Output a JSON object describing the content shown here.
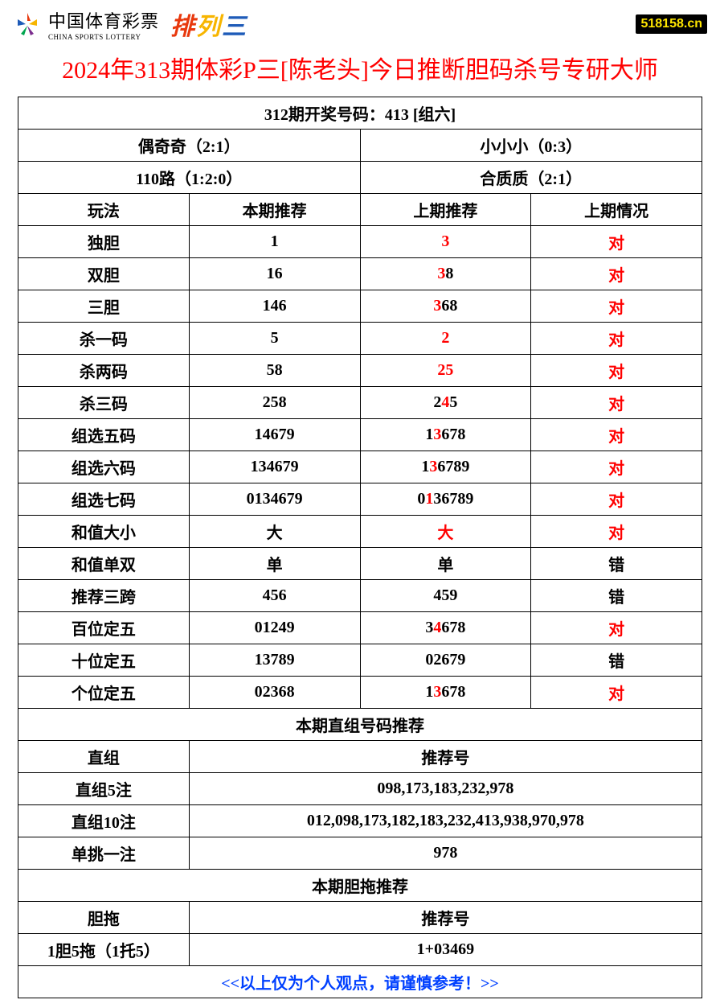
{
  "header": {
    "logo_cn": "中国体育彩票",
    "logo_en": "CHINA SPORTS LOTTERY",
    "pls_1": "排",
    "pls_2": "列",
    "pls_3": "三",
    "site_tag": "518158.cn"
  },
  "title": "2024年313期体彩P三[陈老头]今日推断胆码杀号专研大师",
  "summary": {
    "result_label": "312期开奖号码：413 [组六]",
    "row1_left": "偶奇奇（2:1）",
    "row1_right": "小小小（0:3）",
    "row2_left": "110路（1:2:0）",
    "row2_right": "合质质（2:1）"
  },
  "columns": {
    "c1": "玩法",
    "c2": "本期推荐",
    "c3": "上期推荐",
    "c4": "上期情况"
  },
  "rows": [
    {
      "name": "独胆",
      "cur": "1",
      "prev": [
        {
          "t": "3",
          "r": true
        }
      ],
      "status": "对",
      "status_r": true
    },
    {
      "name": "双胆",
      "cur": "16",
      "prev": [
        {
          "t": "3",
          "r": true
        },
        {
          "t": "8",
          "r": false
        }
      ],
      "status": "对",
      "status_r": true
    },
    {
      "name": "三胆",
      "cur": "146",
      "prev": [
        {
          "t": "3",
          "r": true
        },
        {
          "t": "68",
          "r": false
        }
      ],
      "status": "对",
      "status_r": true
    },
    {
      "name": "杀一码",
      "cur": "5",
      "prev": [
        {
          "t": "2",
          "r": true
        }
      ],
      "status": "对",
      "status_r": true
    },
    {
      "name": "杀两码",
      "cur": "58",
      "prev": [
        {
          "t": "25",
          "r": true
        }
      ],
      "status": "对",
      "status_r": true
    },
    {
      "name": "杀三码",
      "cur": "258",
      "prev": [
        {
          "t": "2",
          "r": false
        },
        {
          "t": "4",
          "r": true
        },
        {
          "t": "5",
          "r": false
        }
      ],
      "status": "对",
      "status_r": true
    },
    {
      "name": "组选五码",
      "cur": "14679",
      "prev": [
        {
          "t": "1",
          "r": false
        },
        {
          "t": "3",
          "r": true
        },
        {
          "t": "678",
          "r": false
        }
      ],
      "status": "对",
      "status_r": true
    },
    {
      "name": "组选六码",
      "cur": "134679",
      "prev": [
        {
          "t": "1",
          "r": false
        },
        {
          "t": "3",
          "r": true
        },
        {
          "t": "6789",
          "r": false
        }
      ],
      "status": "对",
      "status_r": true
    },
    {
      "name": "组选七码",
      "cur": "0134679",
      "prev": [
        {
          "t": "0",
          "r": false
        },
        {
          "t": "1",
          "r": true
        },
        {
          "t": "3",
          "r": false
        },
        {
          "t": "6789",
          "r": false
        }
      ],
      "status": "对",
      "status_r": true
    },
    {
      "name": "和值大小",
      "cur": "大",
      "prev": [
        {
          "t": "大",
          "r": true
        }
      ],
      "status": "对",
      "status_r": true
    },
    {
      "name": "和值单双",
      "cur": "单",
      "prev": [
        {
          "t": "单",
          "r": false
        }
      ],
      "status": "错",
      "status_r": false
    },
    {
      "name": "推荐三跨",
      "cur": "456",
      "prev": [
        {
          "t": "459",
          "r": false
        }
      ],
      "status": "错",
      "status_r": false
    },
    {
      "name": "百位定五",
      "cur": "01249",
      "prev": [
        {
          "t": "3",
          "r": false
        },
        {
          "t": "4",
          "r": true
        },
        {
          "t": "678",
          "r": false
        }
      ],
      "status": "对",
      "status_r": true
    },
    {
      "name": "十位定五",
      "cur": "13789",
      "prev": [
        {
          "t": "02679",
          "r": false
        }
      ],
      "status": "错",
      "status_r": false
    },
    {
      "name": "个位定五",
      "cur": "02368",
      "prev": [
        {
          "t": "1",
          "r": false
        },
        {
          "t": "3",
          "r": true
        },
        {
          "t": "678",
          "r": false
        }
      ],
      "status": "对",
      "status_r": true
    }
  ],
  "section2": {
    "header": "本期直组号码推荐",
    "col_left": "直组",
    "col_right": "推荐号",
    "rows": [
      {
        "label": "直组5注",
        "val": "098,173,183,232,978"
      },
      {
        "label": "直组10注",
        "val": "012,098,173,182,183,232,413,938,970,978"
      },
      {
        "label": "单挑一注",
        "val": "978"
      }
    ]
  },
  "section3": {
    "header": "本期胆拖推荐",
    "col_left": "胆拖",
    "col_right": "推荐号",
    "rows": [
      {
        "label": "1胆5拖（1托5）",
        "val": "1+03469"
      }
    ]
  },
  "footer": "<<以上仅为个人观点，请谨慎参考！>>"
}
